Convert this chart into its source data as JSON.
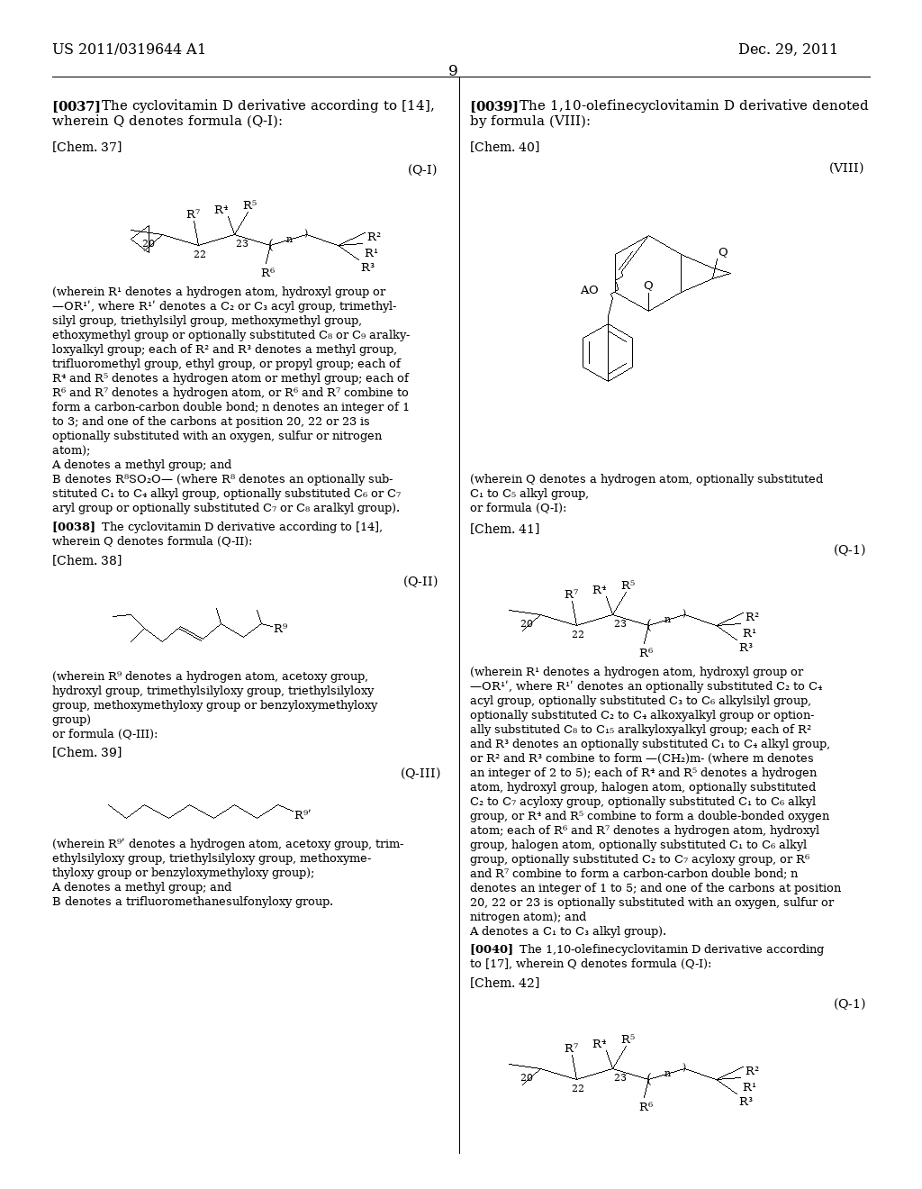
{
  "bg_color": "#ffffff",
  "header_left": "US 2011/0319644 A1",
  "header_right": "Dec. 29, 2011",
  "page_number": "9"
}
